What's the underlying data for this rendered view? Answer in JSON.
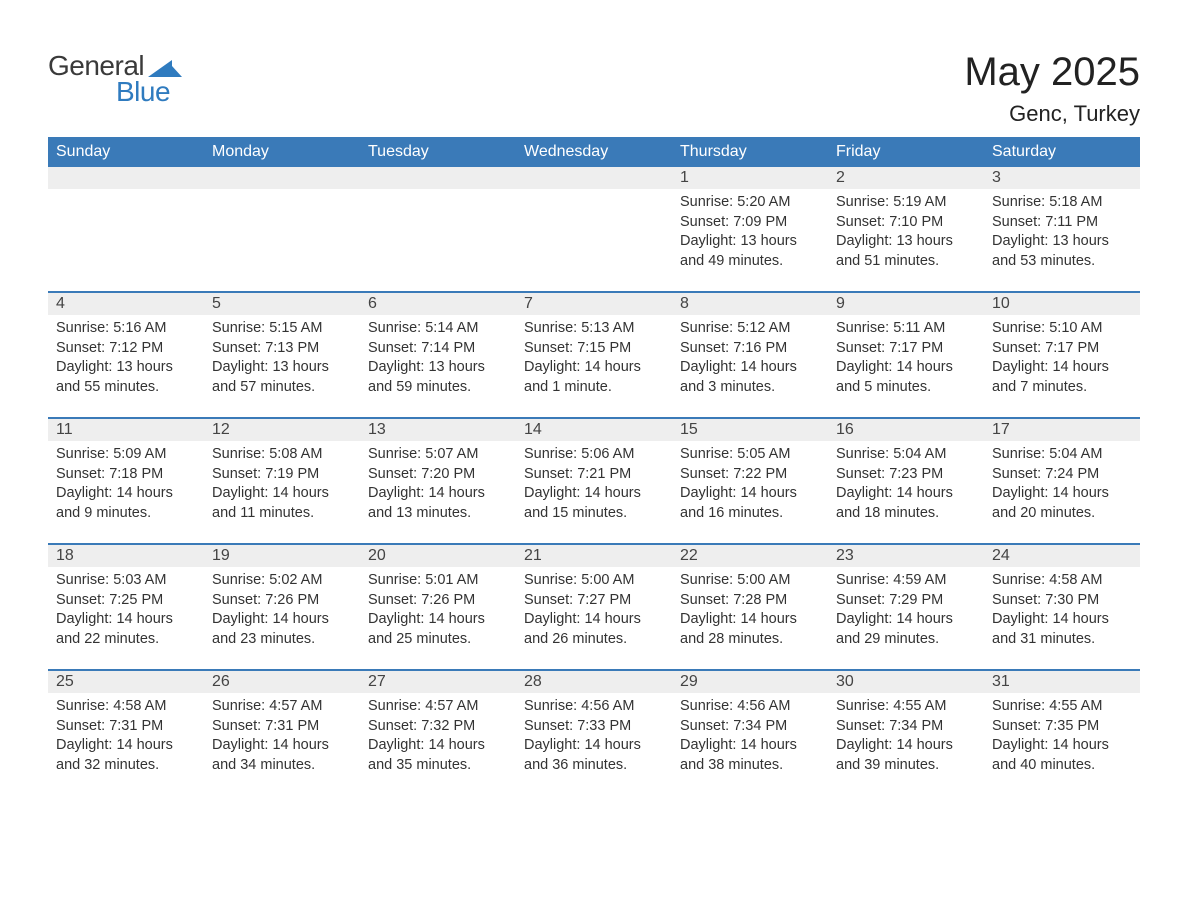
{
  "logo": {
    "word1": "General",
    "word2": "Blue"
  },
  "title": "May 2025",
  "location": "Genc, Turkey",
  "colors": {
    "header_bg": "#3a7ab8",
    "header_text": "#ffffff",
    "daynum_bg": "#eeeeee",
    "body_text": "#333333",
    "accent": "#2f7bbf"
  },
  "days_of_week": [
    "Sunday",
    "Monday",
    "Tuesday",
    "Wednesday",
    "Thursday",
    "Friday",
    "Saturday"
  ],
  "weeks": [
    [
      {
        "num": "",
        "sunrise": "",
        "sunset": "",
        "daylight": ""
      },
      {
        "num": "",
        "sunrise": "",
        "sunset": "",
        "daylight": ""
      },
      {
        "num": "",
        "sunrise": "",
        "sunset": "",
        "daylight": ""
      },
      {
        "num": "",
        "sunrise": "",
        "sunset": "",
        "daylight": ""
      },
      {
        "num": "1",
        "sunrise": "Sunrise: 5:20 AM",
        "sunset": "Sunset: 7:09 PM",
        "daylight": "Daylight: 13 hours and 49 minutes."
      },
      {
        "num": "2",
        "sunrise": "Sunrise: 5:19 AM",
        "sunset": "Sunset: 7:10 PM",
        "daylight": "Daylight: 13 hours and 51 minutes."
      },
      {
        "num": "3",
        "sunrise": "Sunrise: 5:18 AM",
        "sunset": "Sunset: 7:11 PM",
        "daylight": "Daylight: 13 hours and 53 minutes."
      }
    ],
    [
      {
        "num": "4",
        "sunrise": "Sunrise: 5:16 AM",
        "sunset": "Sunset: 7:12 PM",
        "daylight": "Daylight: 13 hours and 55 minutes."
      },
      {
        "num": "5",
        "sunrise": "Sunrise: 5:15 AM",
        "sunset": "Sunset: 7:13 PM",
        "daylight": "Daylight: 13 hours and 57 minutes."
      },
      {
        "num": "6",
        "sunrise": "Sunrise: 5:14 AM",
        "sunset": "Sunset: 7:14 PM",
        "daylight": "Daylight: 13 hours and 59 minutes."
      },
      {
        "num": "7",
        "sunrise": "Sunrise: 5:13 AM",
        "sunset": "Sunset: 7:15 PM",
        "daylight": "Daylight: 14 hours and 1 minute."
      },
      {
        "num": "8",
        "sunrise": "Sunrise: 5:12 AM",
        "sunset": "Sunset: 7:16 PM",
        "daylight": "Daylight: 14 hours and 3 minutes."
      },
      {
        "num": "9",
        "sunrise": "Sunrise: 5:11 AM",
        "sunset": "Sunset: 7:17 PM",
        "daylight": "Daylight: 14 hours and 5 minutes."
      },
      {
        "num": "10",
        "sunrise": "Sunrise: 5:10 AM",
        "sunset": "Sunset: 7:17 PM",
        "daylight": "Daylight: 14 hours and 7 minutes."
      }
    ],
    [
      {
        "num": "11",
        "sunrise": "Sunrise: 5:09 AM",
        "sunset": "Sunset: 7:18 PM",
        "daylight": "Daylight: 14 hours and 9 minutes."
      },
      {
        "num": "12",
        "sunrise": "Sunrise: 5:08 AM",
        "sunset": "Sunset: 7:19 PM",
        "daylight": "Daylight: 14 hours and 11 minutes."
      },
      {
        "num": "13",
        "sunrise": "Sunrise: 5:07 AM",
        "sunset": "Sunset: 7:20 PM",
        "daylight": "Daylight: 14 hours and 13 minutes."
      },
      {
        "num": "14",
        "sunrise": "Sunrise: 5:06 AM",
        "sunset": "Sunset: 7:21 PM",
        "daylight": "Daylight: 14 hours and 15 minutes."
      },
      {
        "num": "15",
        "sunrise": "Sunrise: 5:05 AM",
        "sunset": "Sunset: 7:22 PM",
        "daylight": "Daylight: 14 hours and 16 minutes."
      },
      {
        "num": "16",
        "sunrise": "Sunrise: 5:04 AM",
        "sunset": "Sunset: 7:23 PM",
        "daylight": "Daylight: 14 hours and 18 minutes."
      },
      {
        "num": "17",
        "sunrise": "Sunrise: 5:04 AM",
        "sunset": "Sunset: 7:24 PM",
        "daylight": "Daylight: 14 hours and 20 minutes."
      }
    ],
    [
      {
        "num": "18",
        "sunrise": "Sunrise: 5:03 AM",
        "sunset": "Sunset: 7:25 PM",
        "daylight": "Daylight: 14 hours and 22 minutes."
      },
      {
        "num": "19",
        "sunrise": "Sunrise: 5:02 AM",
        "sunset": "Sunset: 7:26 PM",
        "daylight": "Daylight: 14 hours and 23 minutes."
      },
      {
        "num": "20",
        "sunrise": "Sunrise: 5:01 AM",
        "sunset": "Sunset: 7:26 PM",
        "daylight": "Daylight: 14 hours and 25 minutes."
      },
      {
        "num": "21",
        "sunrise": "Sunrise: 5:00 AM",
        "sunset": "Sunset: 7:27 PM",
        "daylight": "Daylight: 14 hours and 26 minutes."
      },
      {
        "num": "22",
        "sunrise": "Sunrise: 5:00 AM",
        "sunset": "Sunset: 7:28 PM",
        "daylight": "Daylight: 14 hours and 28 minutes."
      },
      {
        "num": "23",
        "sunrise": "Sunrise: 4:59 AM",
        "sunset": "Sunset: 7:29 PM",
        "daylight": "Daylight: 14 hours and 29 minutes."
      },
      {
        "num": "24",
        "sunrise": "Sunrise: 4:58 AM",
        "sunset": "Sunset: 7:30 PM",
        "daylight": "Daylight: 14 hours and 31 minutes."
      }
    ],
    [
      {
        "num": "25",
        "sunrise": "Sunrise: 4:58 AM",
        "sunset": "Sunset: 7:31 PM",
        "daylight": "Daylight: 14 hours and 32 minutes."
      },
      {
        "num": "26",
        "sunrise": "Sunrise: 4:57 AM",
        "sunset": "Sunset: 7:31 PM",
        "daylight": "Daylight: 14 hours and 34 minutes."
      },
      {
        "num": "27",
        "sunrise": "Sunrise: 4:57 AM",
        "sunset": "Sunset: 7:32 PM",
        "daylight": "Daylight: 14 hours and 35 minutes."
      },
      {
        "num": "28",
        "sunrise": "Sunrise: 4:56 AM",
        "sunset": "Sunset: 7:33 PM",
        "daylight": "Daylight: 14 hours and 36 minutes."
      },
      {
        "num": "29",
        "sunrise": "Sunrise: 4:56 AM",
        "sunset": "Sunset: 7:34 PM",
        "daylight": "Daylight: 14 hours and 38 minutes."
      },
      {
        "num": "30",
        "sunrise": "Sunrise: 4:55 AM",
        "sunset": "Sunset: 7:34 PM",
        "daylight": "Daylight: 14 hours and 39 minutes."
      },
      {
        "num": "31",
        "sunrise": "Sunrise: 4:55 AM",
        "sunset": "Sunset: 7:35 PM",
        "daylight": "Daylight: 14 hours and 40 minutes."
      }
    ]
  ]
}
